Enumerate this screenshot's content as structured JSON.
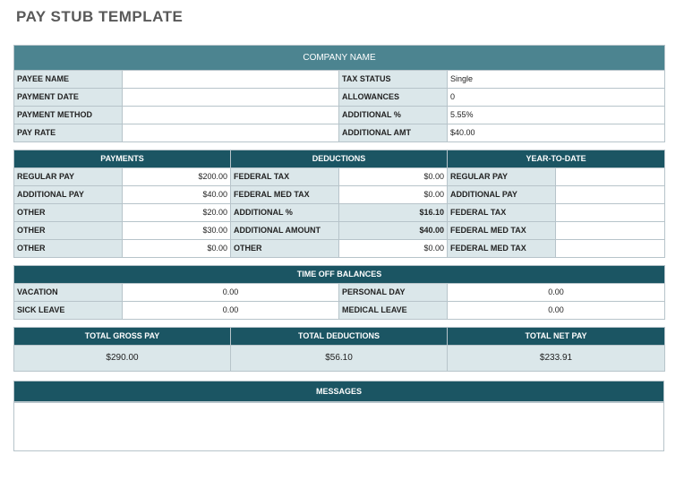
{
  "title": "PAY STUB TEMPLATE",
  "company": {
    "name": "COMPANY NAME",
    "rows": [
      {
        "label": "PAYEE NAME",
        "value": "",
        "label2": "TAX STATUS",
        "value2": "Single"
      },
      {
        "label": "PAYMENT DATE",
        "value": "",
        "label2": "ALLOWANCES",
        "value2": "0"
      },
      {
        "label": "PAYMENT METHOD",
        "value": "",
        "label2": "ADDITIONAL %",
        "value2": "5.55%"
      },
      {
        "label": "PAY RATE",
        "value": "",
        "label2": "ADDITIONAL AMT",
        "value2": "$40.00"
      }
    ]
  },
  "breakdown": {
    "headers": [
      "PAYMENTS",
      "DEDUCTIONS",
      "YEAR-TO-DATE"
    ],
    "rows": [
      {
        "pay_label": "REGULAR PAY",
        "pay_value": "$200.00",
        "ded_label": "FEDERAL TAX",
        "ded_value": "$0.00",
        "ytd_label": "REGULAR PAY",
        "ytd_value": ""
      },
      {
        "pay_label": "ADDITIONAL PAY",
        "pay_value": "$40.00",
        "ded_label": "FEDERAL MED TAX",
        "ded_value": "$0.00",
        "ytd_label": "ADDITIONAL PAY",
        "ytd_value": ""
      },
      {
        "pay_label": "OTHER",
        "pay_value": "$20.00",
        "ded_label": "ADDITIONAL %",
        "ded_value": "$16.10",
        "ytd_label": "FEDERAL TAX",
        "ytd_value": ""
      },
      {
        "pay_label": "OTHER",
        "pay_value": "$30.00",
        "ded_label": "ADDITIONAL AMOUNT",
        "ded_value": "$40.00",
        "ytd_label": "FEDERAL MED TAX",
        "ytd_value": ""
      },
      {
        "pay_label": "OTHER",
        "pay_value": "$0.00",
        "ded_label": "OTHER",
        "ded_value": "$0.00",
        "ytd_label": "FEDERAL MED TAX",
        "ytd_value": ""
      }
    ]
  },
  "time_off": {
    "header": "TIME OFF BALANCES",
    "rows": [
      {
        "label": "VACATION",
        "value": "0.00",
        "label2": "PERSONAL DAY",
        "value2": "0.00"
      },
      {
        "label": "SICK LEAVE",
        "value": "0.00",
        "label2": "MEDICAL LEAVE",
        "value2": "0.00"
      }
    ]
  },
  "totals": {
    "gross_label": "TOTAL GROSS PAY",
    "gross_value": "$290.00",
    "deductions_label": "TOTAL DEDUCTIONS",
    "deductions_value": "$56.10",
    "net_label": "TOTAL NET PAY",
    "net_value": "$233.91"
  },
  "messages": {
    "header": "MESSAGES",
    "body": ""
  }
}
